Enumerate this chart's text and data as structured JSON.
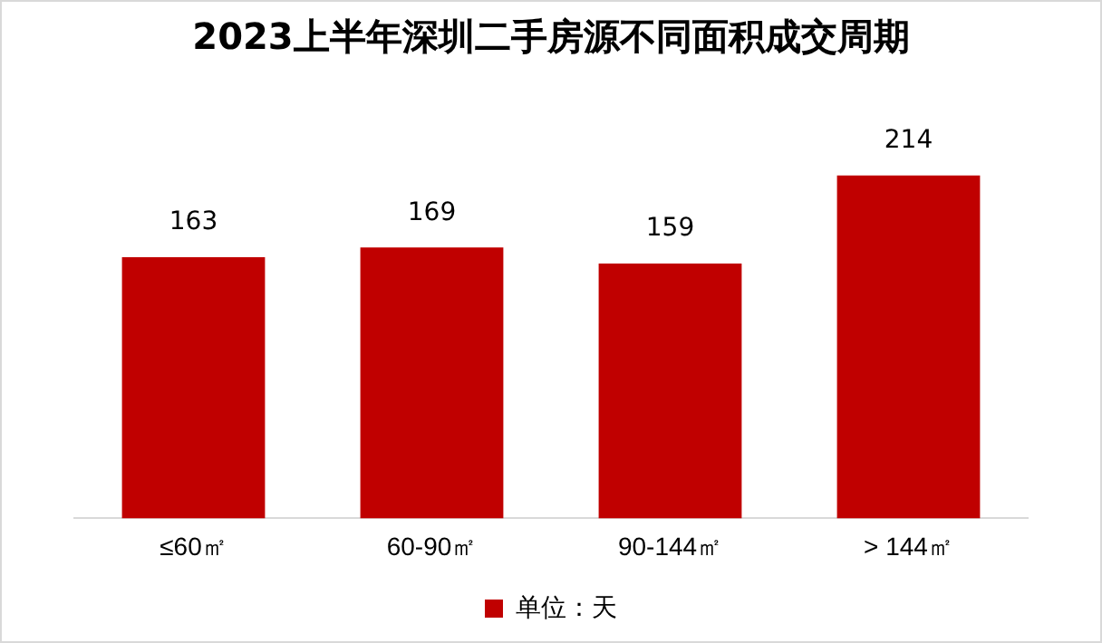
{
  "chart_data": {
    "type": "bar",
    "title": "2023上半年深圳二手房源不同面积成交周期",
    "categories": [
      "≤60㎡",
      "60-90㎡",
      "90-144㎡",
      "> 144㎡"
    ],
    "series": [
      {
        "name": "单位：天",
        "color": "#c00000",
        "values": [
          163,
          169,
          159,
          214
        ]
      }
    ],
    "data_labels": true,
    "legend": "bottom",
    "grid": false
  }
}
